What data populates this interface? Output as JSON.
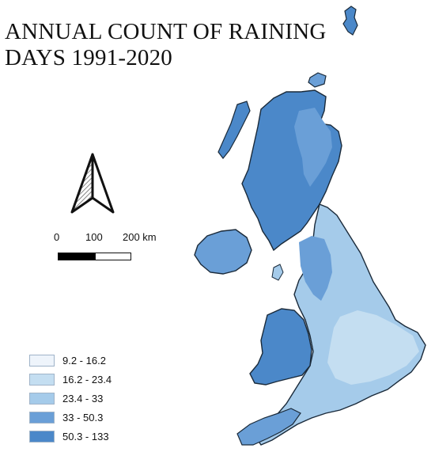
{
  "title": {
    "line1": "ANNUAL COUNT OF RAINING",
    "line2": "DAYS 1991-2020"
  },
  "scale_bar": {
    "labels": [
      "0",
      "100",
      "200 km"
    ]
  },
  "legend": {
    "classes": [
      {
        "label": "9.2 - 16.2",
        "color": "#eef4fb"
      },
      {
        "label": "16.2 - 23.4",
        "color": "#c4def1"
      },
      {
        "label": "23.4 - 33",
        "color": "#a5cbea"
      },
      {
        "label": "33 - 50.3",
        "color": "#6a9fd7"
      },
      {
        "label": "50.3 - 133",
        "color": "#4b88c9"
      }
    ]
  },
  "icons": {
    "north_arrow": "north-arrow-icon"
  }
}
